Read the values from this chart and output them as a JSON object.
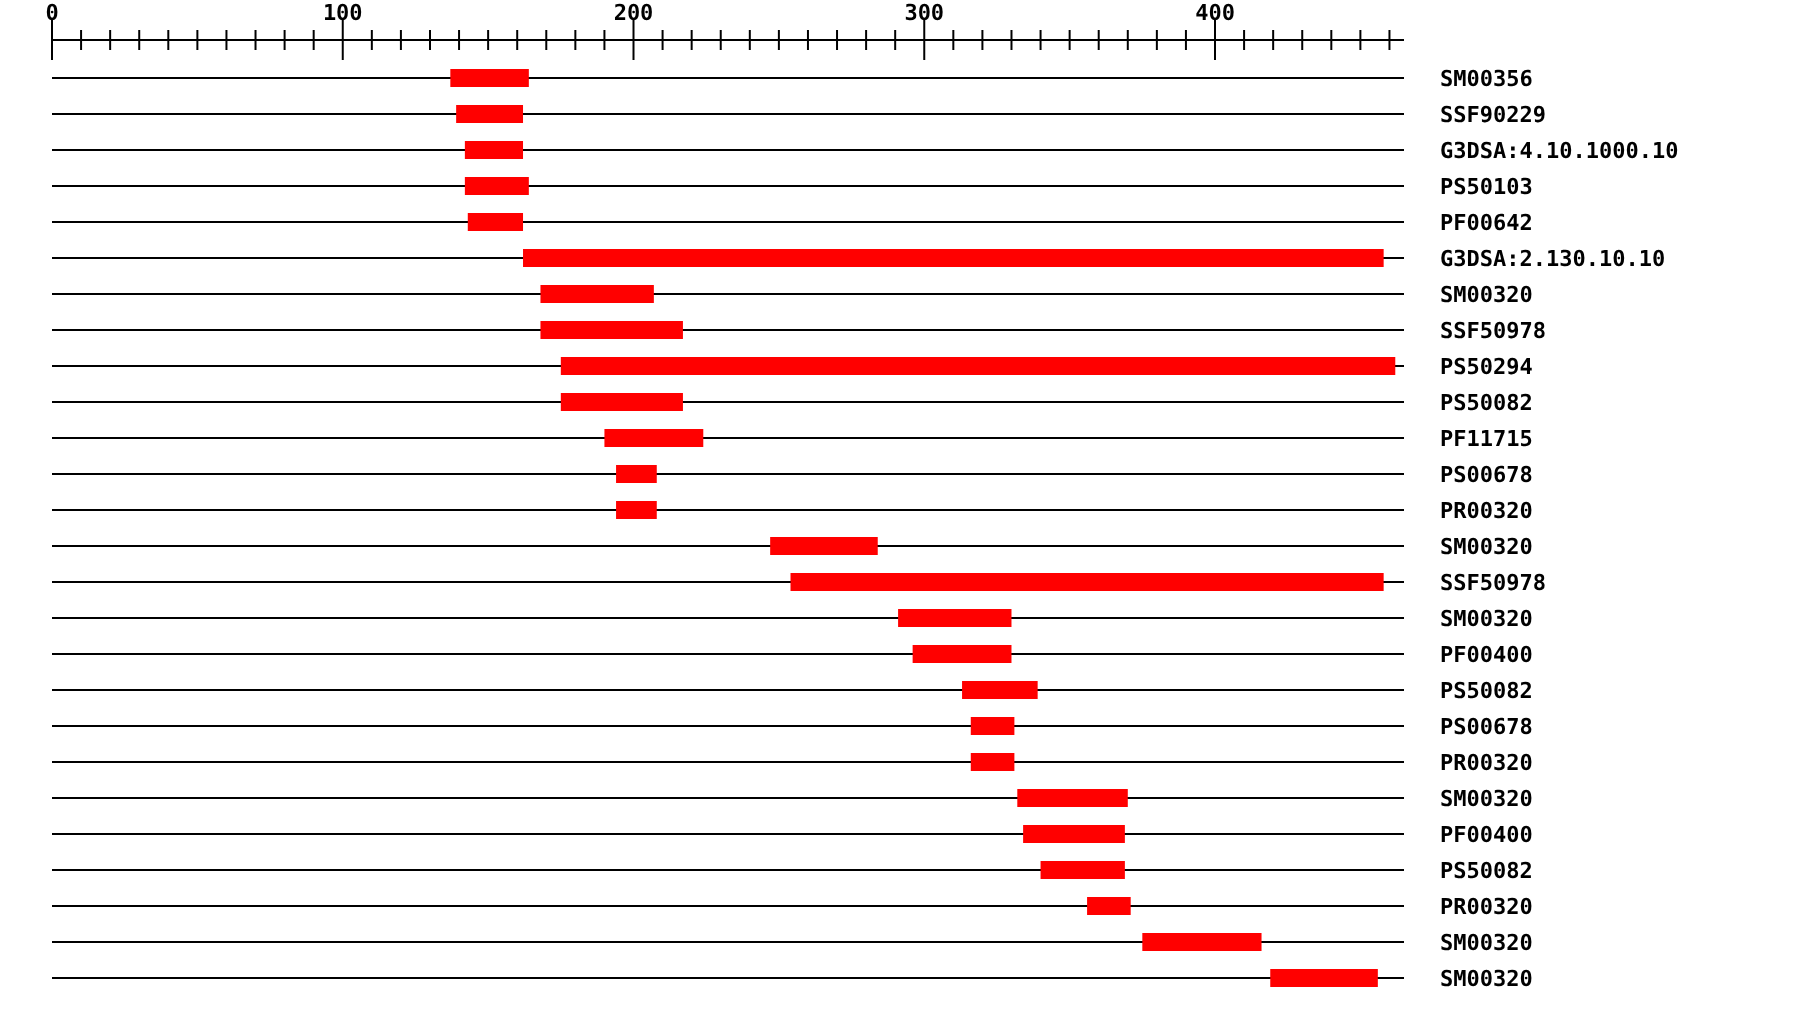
{
  "chart_data": {
    "type": "bar",
    "orientation": "horizontal",
    "grid": "y",
    "xlim": [
      0,
      465
    ],
    "xticks": [
      0,
      {
        "value": 10,
        "label": null
      },
      {
        "value": 20,
        "label": null
      },
      {
        "value": 30,
        "label": null
      },
      {
        "value": 40,
        "label": null
      },
      {
        "value": 50,
        "label": null
      },
      {
        "value": 60,
        "label": null
      },
      {
        "value": 70,
        "label": null
      },
      {
        "value": 80,
        "label": null
      },
      {
        "value": 90,
        "label": null
      },
      100,
      {
        "value": 110,
        "label": null
      },
      {
        "value": 120,
        "label": null
      },
      {
        "value": 130,
        "label": null
      },
      {
        "value": 140,
        "label": null
      },
      {
        "value": 150,
        "label": null
      },
      {
        "value": 160,
        "label": null
      },
      {
        "value": 170,
        "label": null
      },
      {
        "value": 180,
        "label": null
      },
      {
        "value": 190,
        "label": null
      },
      200,
      {
        "value": 210,
        "label": null
      },
      {
        "value": 220,
        "label": null
      },
      {
        "value": 230,
        "label": null
      },
      {
        "value": 240,
        "label": null
      },
      {
        "value": 250,
        "label": null
      },
      {
        "value": 260,
        "label": null
      },
      {
        "value": 270,
        "label": null
      },
      {
        "value": 280,
        "label": null
      },
      {
        "value": 290,
        "label": null
      },
      300,
      {
        "value": 310,
        "label": null
      },
      {
        "value": 320,
        "label": null
      },
      {
        "value": 330,
        "label": null
      },
      {
        "value": 340,
        "label": null
      },
      {
        "value": 350,
        "label": null
      },
      {
        "value": 360,
        "label": null
      },
      {
        "value": 370,
        "label": null
      },
      {
        "value": 380,
        "label": null
      },
      {
        "value": 390,
        "label": null
      },
      400,
      {
        "value": 410,
        "label": null
      },
      {
        "value": 420,
        "label": null
      },
      {
        "value": 430,
        "label": null
      },
      {
        "value": 440,
        "label": null
      },
      {
        "value": 450,
        "label": null
      },
      {
        "value": 460,
        "label": null
      }
    ],
    "categories": [
      "SM00356",
      "SSF90229",
      "G3DSA:4.10.1000.10",
      "PS50103",
      "PF00642",
      "G3DSA:2.130.10.10",
      "SM00320",
      "SSF50978",
      "PS50294",
      "PS50082",
      "PF11715",
      "PS00678",
      "PR00320",
      "SM00320",
      "SSF50978",
      "SM00320",
      "PF00400",
      "PS50082",
      "PS00678",
      "PR00320",
      "SM00320",
      "PF00400",
      "PS50082",
      "PR00320",
      "SM00320",
      "SM00320"
    ],
    "base": [
      137,
      139,
      142,
      142,
      143,
      162,
      168,
      168,
      175,
      175,
      190,
      194,
      194,
      247,
      254,
      291,
      296,
      313,
      316,
      316,
      332,
      334,
      340,
      356,
      375,
      419
    ],
    "values": [
      27,
      23,
      20,
      22,
      19,
      296,
      39,
      49,
      287,
      42,
      34,
      14,
      14,
      37,
      204,
      39,
      34,
      26,
      15,
      15,
      38,
      35,
      29,
      15,
      41,
      37
    ],
    "color": "#ff0000"
  }
}
